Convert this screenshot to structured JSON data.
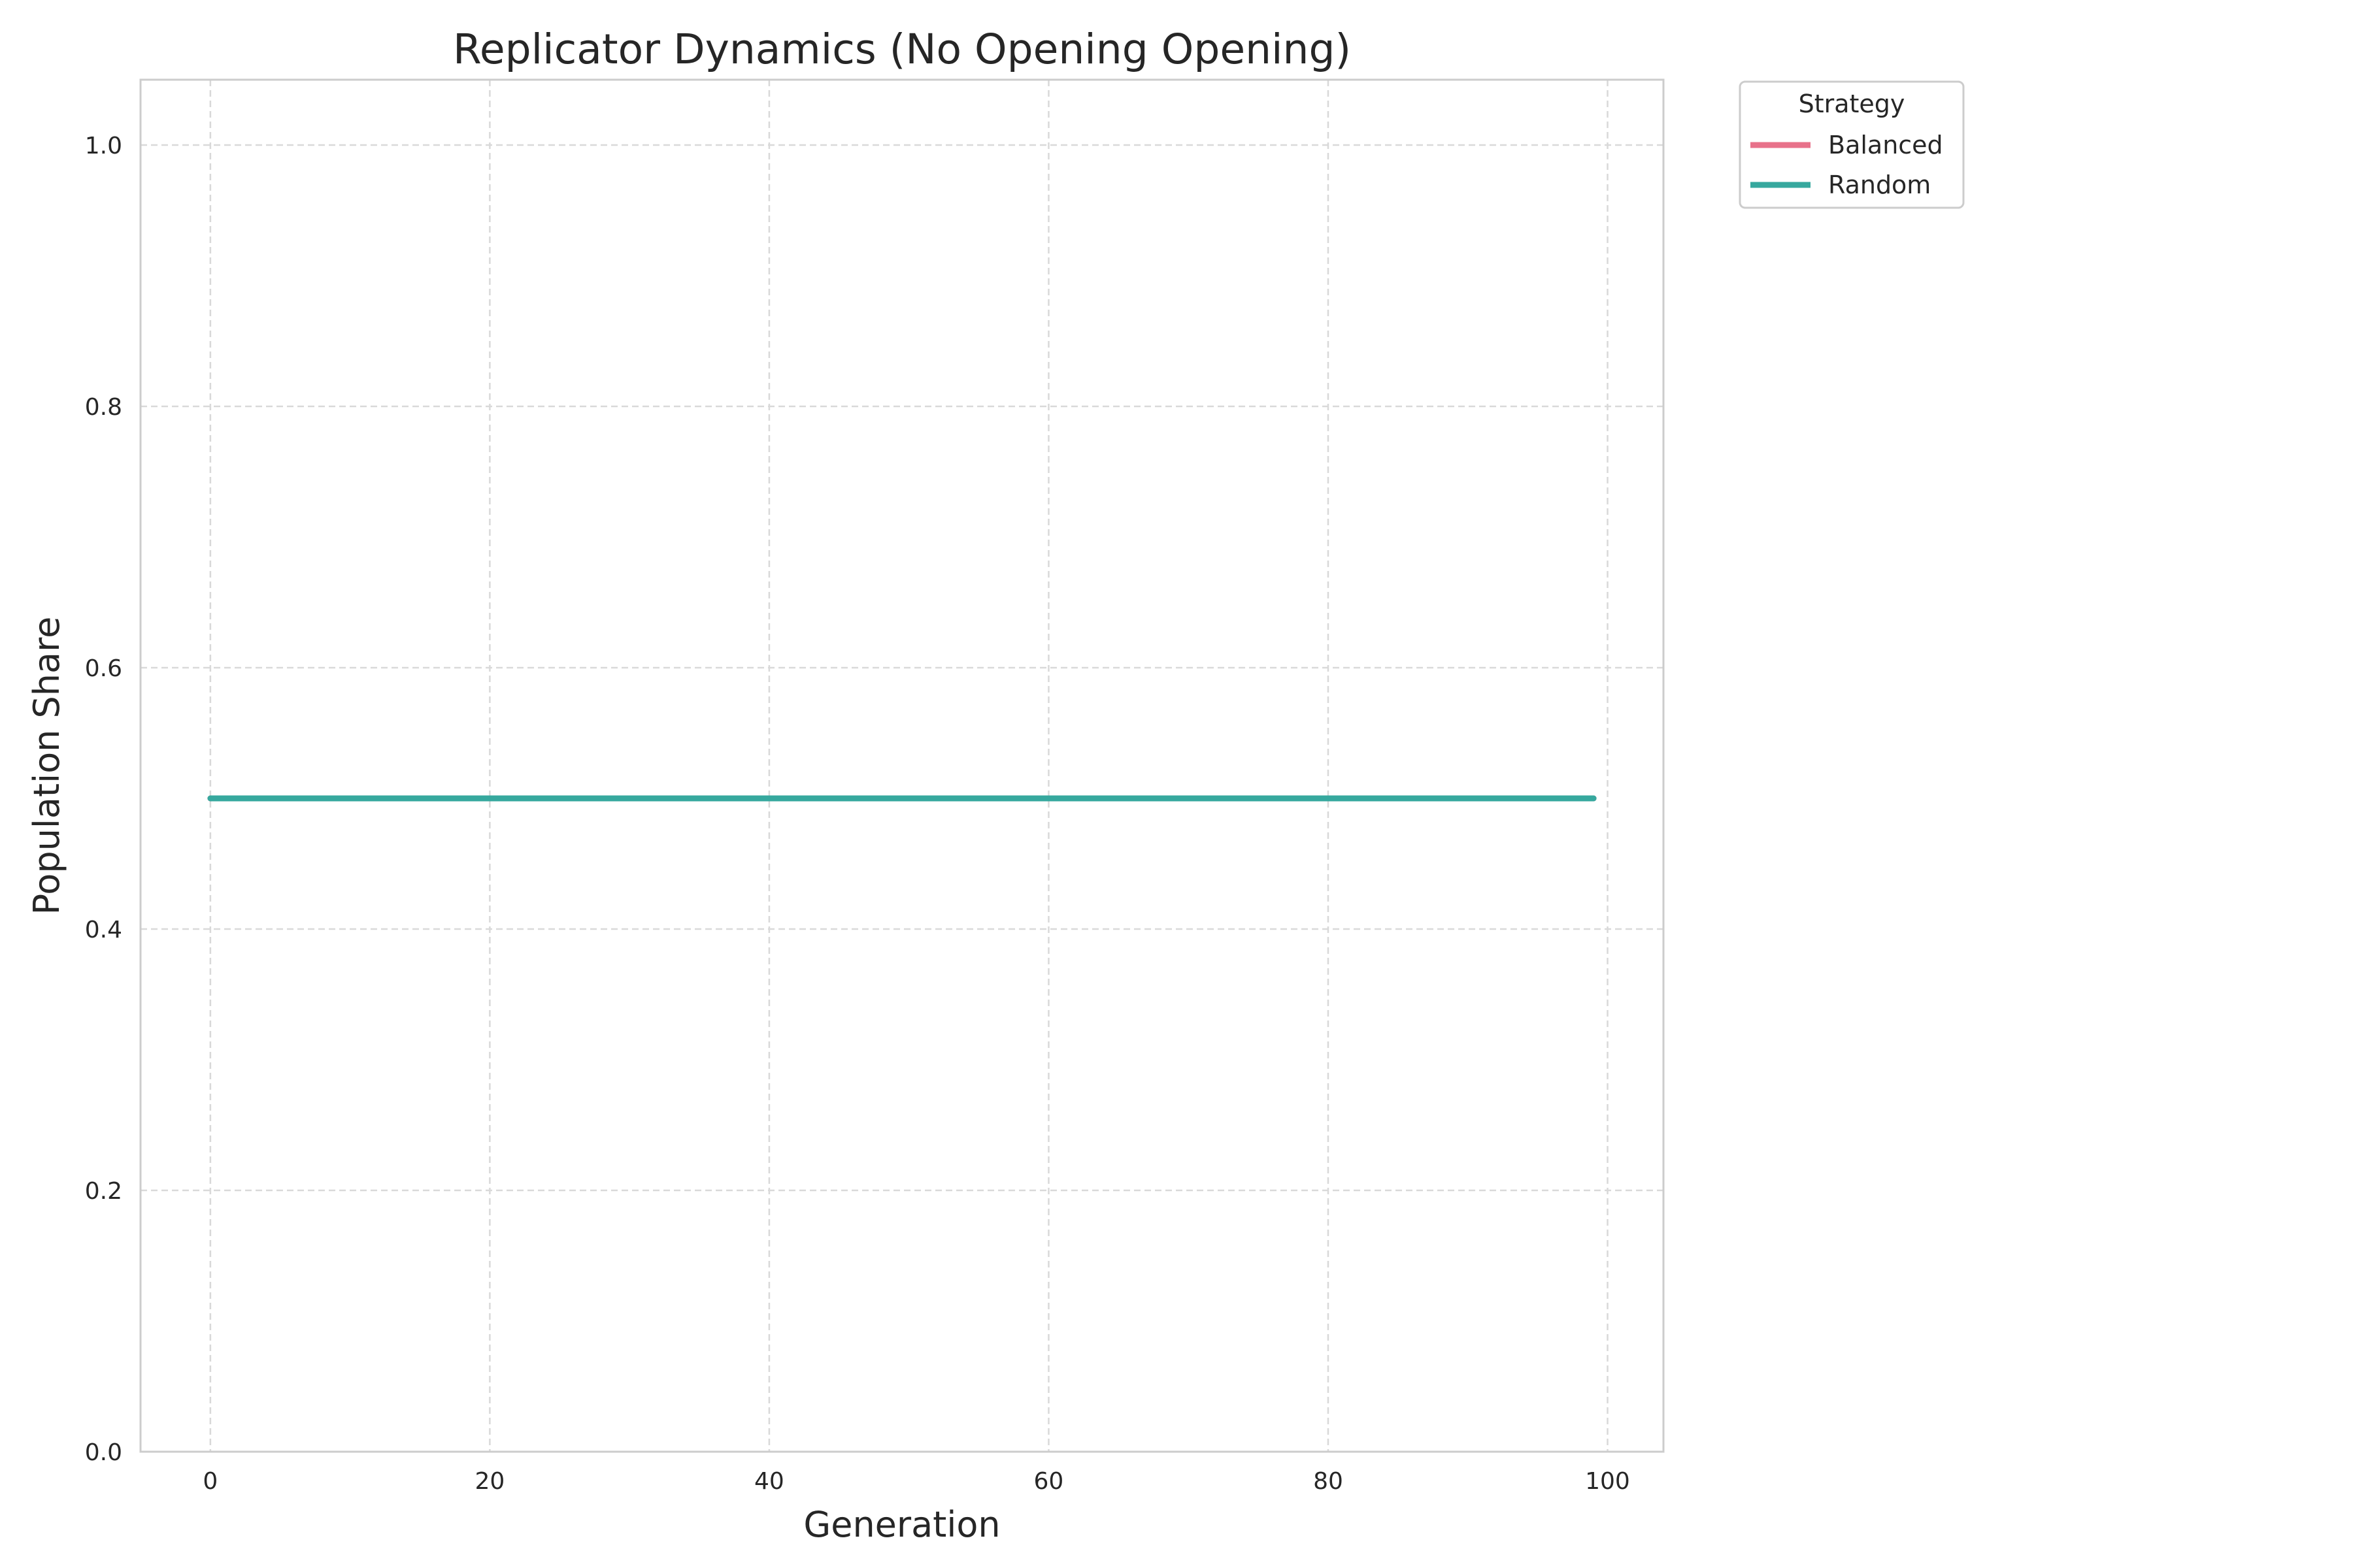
{
  "chart_data": {
    "type": "line",
    "title": "Replicator Dynamics (No Opening Opening)",
    "xlabel": "Generation",
    "ylabel": "Population Share",
    "xlim": [
      -5,
      104
    ],
    "ylim": [
      0,
      1.05
    ],
    "xticks": [
      0,
      20,
      40,
      60,
      80,
      100
    ],
    "yticks": [
      0.0,
      0.2,
      0.4,
      0.6,
      0.8,
      1.0
    ],
    "xtick_labels": [
      "0",
      "20",
      "40",
      "60",
      "80",
      "100"
    ],
    "ytick_labels": [
      "0.0",
      "0.2",
      "0.4",
      "0.6",
      "0.8",
      "1.0"
    ],
    "grid": true,
    "legend": {
      "title": "Strategy",
      "placement": "outside-upper-right"
    },
    "series": [
      {
        "name": "Balanced",
        "color": "#e8718a",
        "x": [
          0,
          99
        ],
        "y": [
          0.5,
          0.5
        ]
      },
      {
        "name": "Random",
        "color": "#36a89e",
        "x": [
          0,
          99
        ],
        "y": [
          0.5,
          0.5
        ]
      }
    ]
  }
}
